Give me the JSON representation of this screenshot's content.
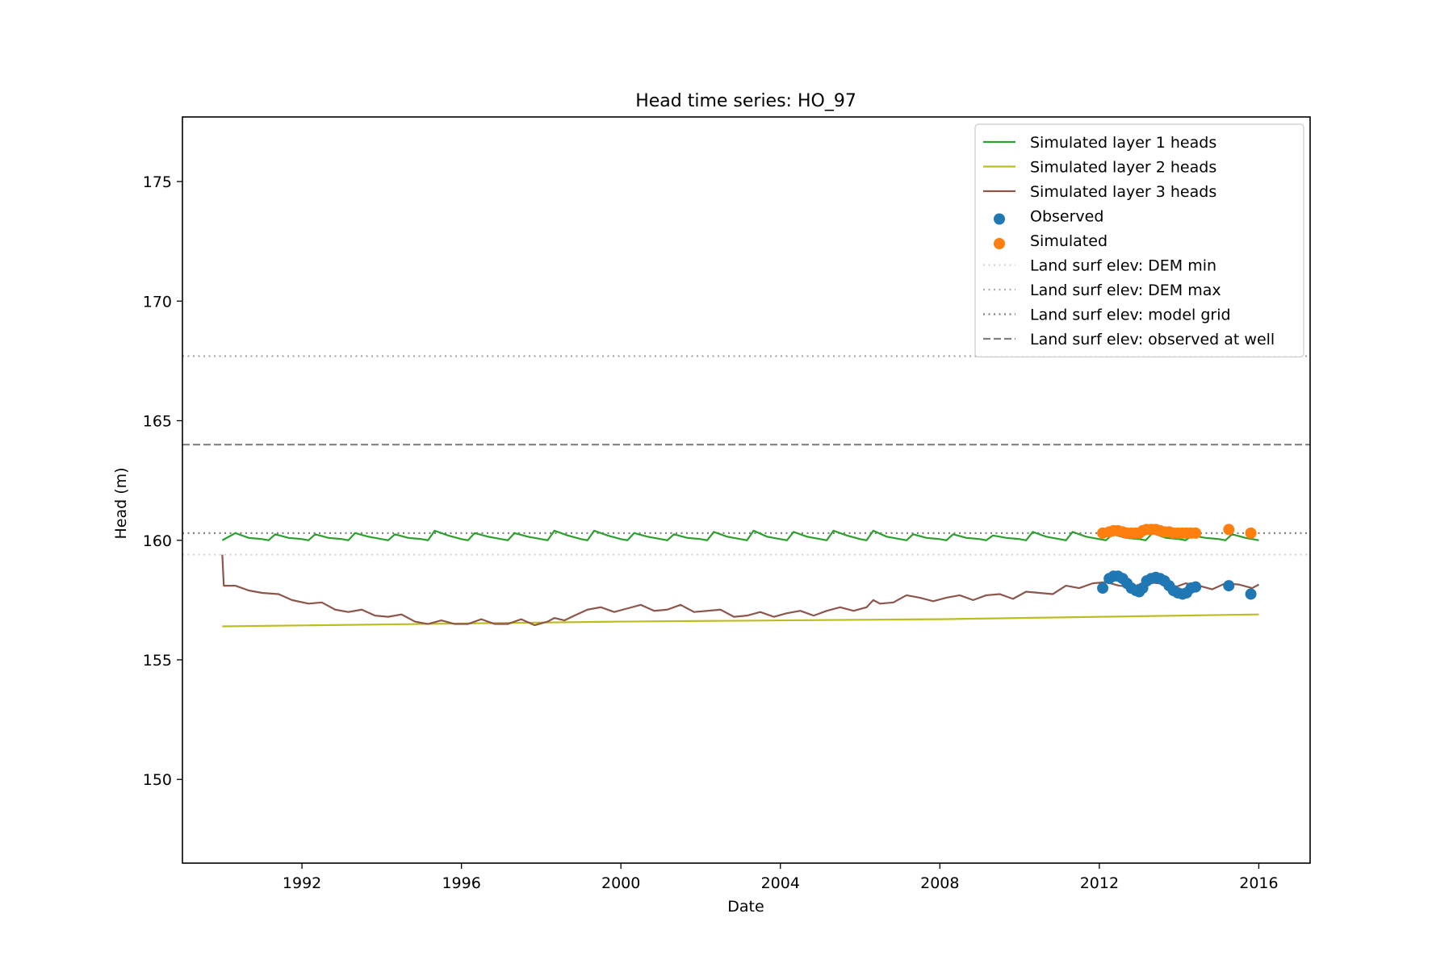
{
  "chart_data": {
    "type": "line",
    "title": "Head time series: HO_97",
    "xlabel": "Date",
    "ylabel": "Head (m)",
    "xlim": [
      "1989-01-01",
      "2017-04-15"
    ],
    "ylim": [
      146.5,
      177.7
    ],
    "x_ticks": [
      {
        "date": "1992-01-01",
        "label": "1992"
      },
      {
        "date": "1996-01-01",
        "label": "1996"
      },
      {
        "date": "2000-01-01",
        "label": "2000"
      },
      {
        "date": "2004-01-01",
        "label": "2004"
      },
      {
        "date": "2008-01-01",
        "label": "2008"
      },
      {
        "date": "2012-01-01",
        "label": "2012"
      },
      {
        "date": "2016-01-01",
        "label": "2016"
      }
    ],
    "y_ticks": [
      {
        "value": 150,
        "label": "150"
      },
      {
        "value": 155,
        "label": "155"
      },
      {
        "value": 160,
        "label": "160"
      },
      {
        "value": 165,
        "label": "165"
      },
      {
        "value": 170,
        "label": "170"
      },
      {
        "value": 175,
        "label": "175"
      }
    ],
    "grid": false,
    "legend_position": "top-right",
    "hlines": [
      {
        "name": "Land surf elev: DEM min",
        "value": 159.4,
        "color": "#d3d3d3",
        "style": "dotted"
      },
      {
        "name": "Land surf elev: DEM max",
        "value": 167.7,
        "color": "#a9a9a9",
        "style": "dotted"
      },
      {
        "name": "Land surf elev: model grid",
        "value": 160.3,
        "color": "#808080",
        "style": "dotted"
      },
      {
        "name": "Land surf elev: observed at well",
        "value": 164.0,
        "color": "#808080",
        "style": "dashed"
      }
    ],
    "series": [
      {
        "name": "Simulated layer 1 heads",
        "kind": "line",
        "color": "#2ca02c",
        "points": [
          [
            "1990-01-01",
            160.0
          ],
          [
            "1990-05-01",
            160.3
          ],
          [
            "1990-09-01",
            160.1
          ],
          [
            "1991-01-01",
            160.05
          ],
          [
            "1991-03-01",
            160.0
          ],
          [
            "1991-05-01",
            160.25
          ],
          [
            "1991-09-01",
            160.1
          ],
          [
            "1992-01-01",
            160.05
          ],
          [
            "1992-03-01",
            160.0
          ],
          [
            "1992-05-01",
            160.25
          ],
          [
            "1992-09-01",
            160.1
          ],
          [
            "1993-01-01",
            160.05
          ],
          [
            "1993-03-01",
            160.0
          ],
          [
            "1993-05-01",
            160.3
          ],
          [
            "1993-09-01",
            160.15
          ],
          [
            "1994-01-01",
            160.05
          ],
          [
            "1994-03-01",
            160.0
          ],
          [
            "1994-05-01",
            160.25
          ],
          [
            "1994-09-01",
            160.1
          ],
          [
            "1995-01-01",
            160.05
          ],
          [
            "1995-03-01",
            160.0
          ],
          [
            "1995-05-01",
            160.4
          ],
          [
            "1995-09-01",
            160.2
          ],
          [
            "1996-01-01",
            160.05
          ],
          [
            "1996-03-01",
            160.0
          ],
          [
            "1996-05-01",
            160.3
          ],
          [
            "1996-09-01",
            160.15
          ],
          [
            "1997-01-01",
            160.05
          ],
          [
            "1997-03-01",
            160.0
          ],
          [
            "1997-05-01",
            160.3
          ],
          [
            "1997-09-01",
            160.15
          ],
          [
            "1998-01-01",
            160.05
          ],
          [
            "1998-03-01",
            160.0
          ],
          [
            "1998-05-01",
            160.4
          ],
          [
            "1998-09-01",
            160.2
          ],
          [
            "1999-01-01",
            160.05
          ],
          [
            "1999-03-01",
            160.0
          ],
          [
            "1999-05-01",
            160.4
          ],
          [
            "1999-09-01",
            160.2
          ],
          [
            "2000-01-01",
            160.05
          ],
          [
            "2000-03-01",
            160.0
          ],
          [
            "2000-05-01",
            160.3
          ],
          [
            "2000-09-01",
            160.15
          ],
          [
            "2001-01-01",
            160.05
          ],
          [
            "2001-03-01",
            160.0
          ],
          [
            "2001-05-01",
            160.25
          ],
          [
            "2001-09-01",
            160.1
          ],
          [
            "2002-01-01",
            160.05
          ],
          [
            "2002-03-01",
            160.0
          ],
          [
            "2002-05-01",
            160.35
          ],
          [
            "2002-09-01",
            160.15
          ],
          [
            "2003-01-01",
            160.05
          ],
          [
            "2003-03-01",
            160.0
          ],
          [
            "2003-05-01",
            160.4
          ],
          [
            "2003-09-01",
            160.15
          ],
          [
            "2004-01-01",
            160.05
          ],
          [
            "2004-03-01",
            160.0
          ],
          [
            "2004-05-01",
            160.35
          ],
          [
            "2004-09-01",
            160.15
          ],
          [
            "2005-01-01",
            160.05
          ],
          [
            "2005-03-01",
            160.0
          ],
          [
            "2005-05-01",
            160.4
          ],
          [
            "2005-09-01",
            160.2
          ],
          [
            "2006-01-01",
            160.05
          ],
          [
            "2006-03-01",
            160.0
          ],
          [
            "2006-05-01",
            160.4
          ],
          [
            "2006-09-01",
            160.15
          ],
          [
            "2007-01-01",
            160.05
          ],
          [
            "2007-03-01",
            160.0
          ],
          [
            "2007-05-01",
            160.25
          ],
          [
            "2007-09-01",
            160.1
          ],
          [
            "2008-01-01",
            160.05
          ],
          [
            "2008-03-01",
            160.0
          ],
          [
            "2008-05-01",
            160.25
          ],
          [
            "2008-09-01",
            160.1
          ],
          [
            "2009-01-01",
            160.05
          ],
          [
            "2009-03-01",
            160.0
          ],
          [
            "2009-05-01",
            160.2
          ],
          [
            "2009-09-01",
            160.1
          ],
          [
            "2010-01-01",
            160.05
          ],
          [
            "2010-03-01",
            160.0
          ],
          [
            "2010-05-01",
            160.35
          ],
          [
            "2010-09-01",
            160.15
          ],
          [
            "2011-01-01",
            160.05
          ],
          [
            "2011-03-01",
            160.0
          ],
          [
            "2011-05-01",
            160.35
          ],
          [
            "2011-09-01",
            160.15
          ],
          [
            "2012-01-01",
            160.05
          ],
          [
            "2012-03-01",
            160.0
          ],
          [
            "2012-05-01",
            160.25
          ],
          [
            "2012-09-01",
            160.1
          ],
          [
            "2013-01-01",
            160.05
          ],
          [
            "2013-03-01",
            160.0
          ],
          [
            "2013-05-01",
            160.3
          ],
          [
            "2013-09-01",
            160.1
          ],
          [
            "2014-01-01",
            160.05
          ],
          [
            "2014-03-01",
            160.0
          ],
          [
            "2014-05-01",
            160.2
          ],
          [
            "2014-09-01",
            160.1
          ],
          [
            "2015-01-01",
            160.05
          ],
          [
            "2015-03-01",
            160.0
          ],
          [
            "2015-05-01",
            160.25
          ],
          [
            "2015-09-01",
            160.1
          ],
          [
            "2016-01-01",
            160.0
          ]
        ]
      },
      {
        "name": "Simulated layer 2 heads",
        "kind": "line",
        "color": "#bcbd22",
        "points": [
          [
            "1990-01-01",
            156.4
          ],
          [
            "2000-01-01",
            156.6
          ],
          [
            "2008-01-01",
            156.7
          ],
          [
            "2016-01-01",
            156.9
          ]
        ]
      },
      {
        "name": "Simulated layer 3 heads",
        "kind": "line",
        "color": "#8c564b",
        "points": [
          [
            "1990-01-01",
            159.4
          ],
          [
            "1990-01-15",
            158.1
          ],
          [
            "1990-05-01",
            158.1
          ],
          [
            "1990-09-01",
            157.9
          ],
          [
            "1991-01-01",
            157.8
          ],
          [
            "1991-06-01",
            157.75
          ],
          [
            "1991-10-01",
            157.5
          ],
          [
            "1992-03-01",
            157.35
          ],
          [
            "1992-07-01",
            157.4
          ],
          [
            "1992-11-01",
            157.1
          ],
          [
            "1993-03-01",
            157.0
          ],
          [
            "1993-07-01",
            157.1
          ],
          [
            "1993-11-01",
            156.85
          ],
          [
            "1994-03-01",
            156.8
          ],
          [
            "1994-07-01",
            156.9
          ],
          [
            "1994-11-01",
            156.6
          ],
          [
            "1995-03-01",
            156.5
          ],
          [
            "1995-07-01",
            156.65
          ],
          [
            "1995-11-01",
            156.5
          ],
          [
            "1996-03-01",
            156.5
          ],
          [
            "1996-07-01",
            156.7
          ],
          [
            "1996-11-01",
            156.5
          ],
          [
            "1997-03-01",
            156.5
          ],
          [
            "1997-07-01",
            156.7
          ],
          [
            "1997-11-01",
            156.45
          ],
          [
            "1998-03-01",
            156.6
          ],
          [
            "1998-05-01",
            156.75
          ],
          [
            "1998-08-01",
            156.65
          ],
          [
            "1998-11-01",
            156.85
          ],
          [
            "1999-03-01",
            157.1
          ],
          [
            "1999-07-01",
            157.2
          ],
          [
            "1999-11-01",
            157.0
          ],
          [
            "2000-03-01",
            157.15
          ],
          [
            "2000-07-01",
            157.3
          ],
          [
            "2000-11-01",
            157.05
          ],
          [
            "2001-03-01",
            157.1
          ],
          [
            "2001-07-01",
            157.3
          ],
          [
            "2001-11-01",
            157.0
          ],
          [
            "2002-03-01",
            157.05
          ],
          [
            "2002-07-01",
            157.1
          ],
          [
            "2002-11-01",
            156.8
          ],
          [
            "2003-03-01",
            156.85
          ],
          [
            "2003-07-01",
            157.0
          ],
          [
            "2003-11-01",
            156.8
          ],
          [
            "2004-03-01",
            156.95
          ],
          [
            "2004-07-01",
            157.05
          ],
          [
            "2004-11-01",
            156.85
          ],
          [
            "2005-03-01",
            157.05
          ],
          [
            "2005-07-01",
            157.2
          ],
          [
            "2005-11-01",
            157.05
          ],
          [
            "2006-03-01",
            157.2
          ],
          [
            "2006-05-01",
            157.5
          ],
          [
            "2006-07-01",
            157.35
          ],
          [
            "2006-11-01",
            157.4
          ],
          [
            "2007-03-01",
            157.7
          ],
          [
            "2007-07-01",
            157.6
          ],
          [
            "2007-11-01",
            157.45
          ],
          [
            "2008-03-01",
            157.6
          ],
          [
            "2008-07-01",
            157.7
          ],
          [
            "2008-11-01",
            157.5
          ],
          [
            "2009-03-01",
            157.7
          ],
          [
            "2009-07-01",
            157.75
          ],
          [
            "2009-11-01",
            157.55
          ],
          [
            "2010-03-01",
            157.85
          ],
          [
            "2010-07-01",
            157.8
          ],
          [
            "2010-11-01",
            157.75
          ],
          [
            "2011-03-01",
            158.1
          ],
          [
            "2011-07-01",
            158.0
          ],
          [
            "2011-11-01",
            158.2
          ],
          [
            "2012-03-01",
            158.25
          ],
          [
            "2012-07-01",
            158.1
          ],
          [
            "2012-11-01",
            158.05
          ],
          [
            "2013-03-01",
            158.25
          ],
          [
            "2013-07-01",
            158.2
          ],
          [
            "2013-11-01",
            158.0
          ],
          [
            "2014-03-01",
            158.2
          ],
          [
            "2014-07-01",
            158.1
          ],
          [
            "2014-11-01",
            157.95
          ],
          [
            "2015-03-01",
            158.2
          ],
          [
            "2015-07-01",
            158.15
          ],
          [
            "2015-11-01",
            158.0
          ],
          [
            "2016-01-01",
            158.15
          ]
        ]
      },
      {
        "name": "Observed",
        "kind": "scatter",
        "color": "#1f77b4",
        "points": [
          [
            "2012-02-01",
            158.0
          ],
          [
            "2012-04-01",
            158.4
          ],
          [
            "2012-05-10",
            158.5
          ],
          [
            "2012-06-20",
            158.5
          ],
          [
            "2012-08-01",
            158.4
          ],
          [
            "2012-09-10",
            158.2
          ],
          [
            "2012-10-20",
            158.0
          ],
          [
            "2012-12-01",
            157.9
          ],
          [
            "2013-01-01",
            157.85
          ],
          [
            "2013-02-01",
            158.0
          ],
          [
            "2013-03-10",
            158.3
          ],
          [
            "2013-04-20",
            158.4
          ],
          [
            "2013-06-01",
            158.45
          ],
          [
            "2013-07-10",
            158.4
          ],
          [
            "2013-08-20",
            158.3
          ],
          [
            "2013-10-01",
            158.1
          ],
          [
            "2013-11-10",
            157.9
          ],
          [
            "2013-12-20",
            157.8
          ],
          [
            "2014-02-01",
            157.75
          ],
          [
            "2014-03-10",
            157.8
          ],
          [
            "2014-04-20",
            158.0
          ],
          [
            "2014-06-01",
            158.05
          ],
          [
            "2015-04-01",
            158.1
          ],
          [
            "2015-10-20",
            157.75
          ]
        ]
      },
      {
        "name": "Simulated",
        "kind": "scatter",
        "color": "#ff7f0e",
        "points": [
          [
            "2012-02-01",
            160.3
          ],
          [
            "2012-04-01",
            160.35
          ],
          [
            "2012-05-10",
            160.4
          ],
          [
            "2012-06-20",
            160.4
          ],
          [
            "2012-08-01",
            160.35
          ],
          [
            "2012-09-10",
            160.3
          ],
          [
            "2012-10-20",
            160.3
          ],
          [
            "2012-12-01",
            160.3
          ],
          [
            "2013-01-01",
            160.3
          ],
          [
            "2013-02-01",
            160.4
          ],
          [
            "2013-03-10",
            160.45
          ],
          [
            "2013-04-20",
            160.45
          ],
          [
            "2013-06-01",
            160.45
          ],
          [
            "2013-07-10",
            160.4
          ],
          [
            "2013-08-20",
            160.35
          ],
          [
            "2013-10-01",
            160.35
          ],
          [
            "2013-11-10",
            160.3
          ],
          [
            "2013-12-20",
            160.3
          ],
          [
            "2014-02-01",
            160.3
          ],
          [
            "2014-03-10",
            160.3
          ],
          [
            "2014-04-20",
            160.3
          ],
          [
            "2014-06-01",
            160.3
          ],
          [
            "2015-04-01",
            160.45
          ],
          [
            "2015-10-20",
            160.3
          ]
        ]
      }
    ]
  }
}
